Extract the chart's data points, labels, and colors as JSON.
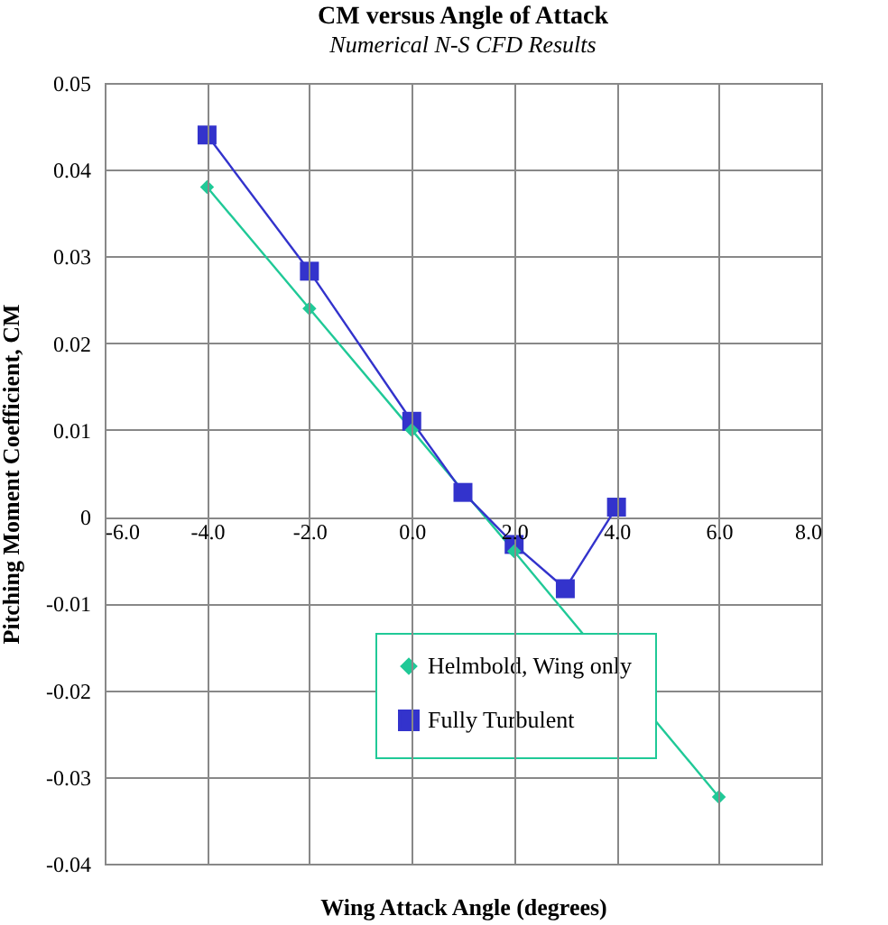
{
  "chart_data": {
    "type": "line",
    "title": "CM versus Angle of Attack",
    "subtitle": "Numerical N-S CFD Results",
    "xlabel": "Wing Attack Angle (degrees)",
    "ylabel": "Pitching Moment Coefficient, CM",
    "series": [
      {
        "name": "Helmbold, Wing only",
        "color": "#20c997",
        "marker": "diamond",
        "x": [
          -4,
          -2,
          0,
          2,
          6
        ],
        "values": [
          0.038,
          0.024,
          0.01,
          -0.004,
          -0.0323
        ]
      },
      {
        "name": "Fully Turbulent",
        "color": "#3333cc",
        "marker": "square",
        "x": [
          -4,
          -2,
          0,
          1,
          2,
          3,
          4
        ],
        "values": [
          0.044,
          0.0283,
          0.011,
          0.0028,
          -0.0032,
          -0.0083,
          0.0011
        ]
      }
    ],
    "xlim": [
      -6,
      8
    ],
    "xticks": [
      {
        "value": -6,
        "label": "-6.0"
      },
      {
        "value": -4,
        "label": "-4.0"
      },
      {
        "value": -2,
        "label": "-2.0"
      },
      {
        "value": 0,
        "label": "0.0"
      },
      {
        "value": 2,
        "label": "2.0"
      },
      {
        "value": 4,
        "label": "4.0"
      },
      {
        "value": 6,
        "label": "6.0"
      },
      {
        "value": 8,
        "label": "8.0"
      }
    ],
    "ylim": [
      -0.04,
      0.05
    ],
    "yticks": [
      -0.04,
      -0.03,
      -0.02,
      -0.01,
      0,
      0.01,
      0.02,
      0.03,
      0.04,
      0.05
    ],
    "grid": true,
    "legend": "bottom right"
  }
}
